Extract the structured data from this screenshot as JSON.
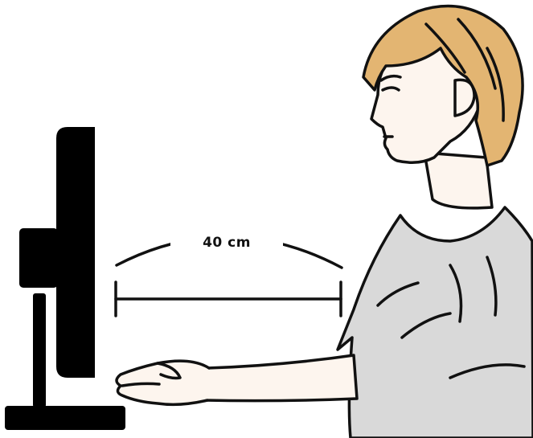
{
  "measurement": {
    "distance_label": "40 cm"
  },
  "colors": {
    "ink": "#111111",
    "monitor": "#000000",
    "hair": "#E3B572",
    "skin": "#FDF5EE",
    "shirt": "#D9D9D9",
    "background": "#FFFFFF"
  }
}
